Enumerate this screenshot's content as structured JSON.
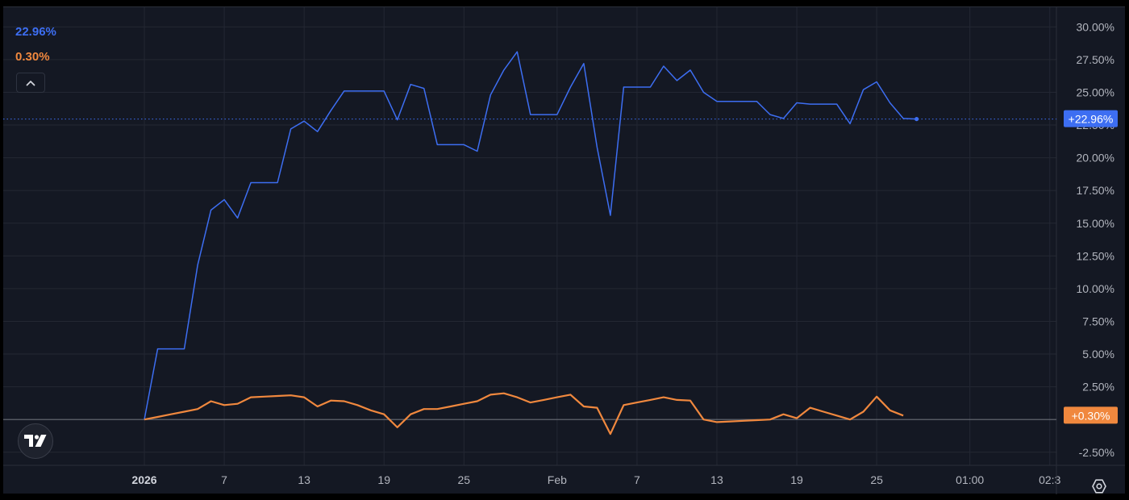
{
  "legend": {
    "series_a_value": "22.96%",
    "series_b_value": "0.30%"
  },
  "colors": {
    "series_a": "#3d6ef2",
    "series_b": "#f0883e",
    "background": "#141823",
    "grid": "#232733",
    "zero_line": "#6b6f78"
  },
  "badges": {
    "series_a": "+22.96%",
    "series_b": "+0.30%"
  },
  "icons": {
    "collapse": "chevron-up-icon",
    "logo": "tradingview-logo-icon",
    "settings": "gear-icon"
  },
  "chart_data": {
    "type": "line",
    "title": "",
    "xlabel": "",
    "ylabel": "",
    "ylim": [
      -3.5,
      31.5
    ],
    "y_ticks": [
      "30.00%",
      "27.50%",
      "25.00%",
      "22.50%",
      "20.00%",
      "17.50%",
      "15.00%",
      "12.50%",
      "10.00%",
      "7.50%",
      "5.00%",
      "2.50%",
      "-2.50%"
    ],
    "y_tick_values": [
      30,
      27.5,
      25,
      22.5,
      20,
      17.5,
      15,
      12.5,
      10,
      7.5,
      5,
      2.5,
      -2.5
    ],
    "x_tick_labels": [
      {
        "label": "2026",
        "day": 0,
        "bold": true
      },
      {
        "label": "7",
        "day": 6
      },
      {
        "label": "13",
        "day": 12
      },
      {
        "label": "19",
        "day": 18
      },
      {
        "label": "25",
        "day": 24
      },
      {
        "label": "Feb",
        "day": 31
      },
      {
        "label": "7",
        "day": 37
      },
      {
        "label": "13",
        "day": 43
      },
      {
        "label": "19",
        "day": 49
      },
      {
        "label": "25",
        "day": 55
      },
      {
        "label": "01:00",
        "day": 62
      },
      {
        "label": "02:3",
        "day": 68
      }
    ],
    "x_range": [
      -10.6,
      68.5
    ],
    "series": [
      {
        "x": [
          0,
          1,
          2,
          3,
          4,
          5,
          6,
          7,
          8,
          9,
          10,
          11,
          12,
          13,
          14,
          15,
          16,
          17,
          18,
          19,
          20,
          21,
          22,
          23,
          24,
          25,
          26,
          27,
          28,
          29,
          30,
          31,
          32,
          33,
          34,
          35,
          36,
          37,
          38,
          39,
          40,
          41,
          42,
          43,
          44,
          45,
          46,
          47,
          48,
          49,
          50,
          51,
          52,
          53,
          54,
          55,
          56,
          57,
          58
        ],
        "values": [
          0,
          5.4,
          5.4,
          5.4,
          11.8,
          16,
          16.8,
          15.4,
          18.1,
          18.1,
          18.1,
          22.2,
          22.8,
          22,
          23.6,
          25.1,
          25.1,
          25.1,
          25.1,
          22.9,
          25.6,
          25.3,
          21,
          21,
          21,
          20.5,
          24.8,
          26.7,
          28.1,
          23.3,
          23.3,
          23.3,
          25.4,
          27.2,
          20.8,
          15.6,
          25.4,
          25.4,
          25.4,
          27,
          25.9,
          26.7,
          25,
          24.3,
          24.3,
          24.3,
          24.3,
          23.3,
          23,
          24.2,
          24.1,
          24.1,
          24.1,
          22.6,
          25.2,
          25.8,
          24.2,
          23,
          22.96
        ]
      },
      {
        "x": [
          0,
          1,
          2,
          3,
          4,
          5,
          6,
          7,
          8,
          9,
          10,
          11,
          12,
          13,
          14,
          15,
          16,
          17,
          18,
          19,
          20,
          21,
          22,
          23,
          24,
          25,
          26,
          27,
          28,
          29,
          30,
          31,
          32,
          33,
          34,
          35,
          36,
          37,
          38,
          39,
          40,
          41,
          42,
          43,
          44,
          45,
          46,
          47,
          48,
          49,
          50,
          51,
          52,
          53,
          54,
          55,
          56,
          57
        ],
        "values": [
          0,
          0.2,
          0.4,
          0.6,
          0.8,
          1.4,
          1.1,
          1.2,
          1.7,
          1.75,
          1.8,
          1.85,
          1.7,
          1.0,
          1.45,
          1.4,
          1.1,
          0.7,
          0.4,
          -0.6,
          0.4,
          0.8,
          0.8,
          1.0,
          1.2,
          1.4,
          1.9,
          2.0,
          1.7,
          1.3,
          1.5,
          1.7,
          1.9,
          1.0,
          0.9,
          -1.1,
          1.1,
          1.3,
          1.5,
          1.7,
          1.5,
          1.45,
          0,
          -0.2,
          -0.15,
          -0.1,
          -0.05,
          0,
          0.4,
          0.1,
          0.9,
          0.6,
          0.3,
          0,
          0.6,
          1.75,
          0.7,
          0.3
        ]
      }
    ],
    "zero_line": 0,
    "current_price_line": {
      "series": 0,
      "value": 22.96
    },
    "grid": true,
    "legend_position": "top-left"
  }
}
